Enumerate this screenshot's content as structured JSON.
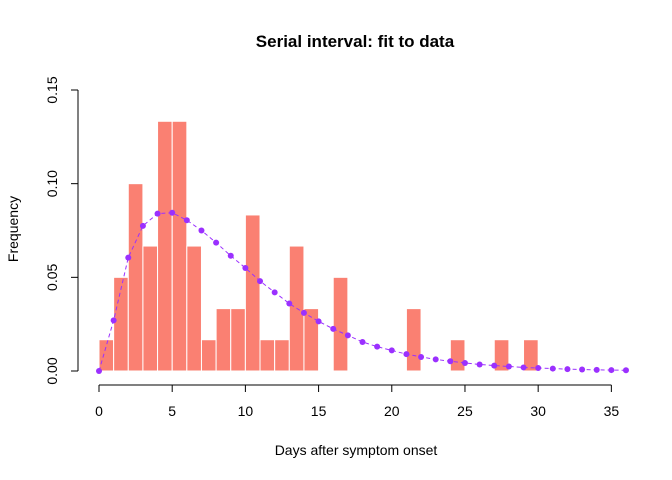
{
  "chart_data": {
    "type": "bar",
    "title": "Serial interval: fit to data",
    "xlabel": "Days after symptom onset",
    "ylabel": "Frequency",
    "xlim": [
      0,
      36
    ],
    "ylim": [
      0,
      0.15
    ],
    "x_ticks": [
      0,
      5,
      10,
      15,
      20,
      25,
      30,
      35
    ],
    "y_ticks": [
      0.0,
      0.05,
      0.1,
      0.15
    ],
    "y_tick_labels": [
      "0.00",
      "0.05",
      "0.10",
      "0.15"
    ],
    "bar_color": "#fa8072",
    "series": [
      {
        "type": "histogram",
        "bins": [
          {
            "x0": 0,
            "x1": 1,
            "value": 0.0167
          },
          {
            "x0": 1,
            "x1": 2,
            "value": 0.05
          },
          {
            "x0": 2,
            "x1": 3,
            "value": 0.1
          },
          {
            "x0": 3,
            "x1": 4,
            "value": 0.0667
          },
          {
            "x0": 4,
            "x1": 5,
            "value": 0.1333
          },
          {
            "x0": 5,
            "x1": 6,
            "value": 0.1333
          },
          {
            "x0": 6,
            "x1": 7,
            "value": 0.0667
          },
          {
            "x0": 7,
            "x1": 8,
            "value": 0.0167
          },
          {
            "x0": 8,
            "x1": 9,
            "value": 0.0333
          },
          {
            "x0": 9,
            "x1": 10,
            "value": 0.0333
          },
          {
            "x0": 10,
            "x1": 11,
            "value": 0.0833
          },
          {
            "x0": 11,
            "x1": 12,
            "value": 0.0167
          },
          {
            "x0": 12,
            "x1": 13,
            "value": 0.0167
          },
          {
            "x0": 13,
            "x1": 14,
            "value": 0.0667
          },
          {
            "x0": 14,
            "x1": 15,
            "value": 0.0333
          },
          {
            "x0": 16,
            "x1": 17,
            "value": 0.05
          },
          {
            "x0": 21,
            "x1": 22,
            "value": 0.0333
          },
          {
            "x0": 24,
            "x1": 25,
            "value": 0.0167
          },
          {
            "x0": 27,
            "x1": 28,
            "value": 0.0167
          },
          {
            "x0": 29,
            "x1": 30,
            "value": 0.0167
          }
        ]
      },
      {
        "type": "line",
        "color": "#9b30ff",
        "line_style": "dashed",
        "x": [
          0,
          1,
          2,
          3,
          4,
          5,
          6,
          7,
          8,
          9,
          10,
          11,
          12,
          13,
          14,
          15,
          16,
          17,
          18,
          19,
          20,
          21,
          22,
          23,
          24,
          25,
          26,
          27,
          28,
          29,
          30,
          31,
          32,
          33,
          34,
          35,
          36
        ],
        "y": [
          0.0,
          0.027,
          0.0605,
          0.0775,
          0.084,
          0.0845,
          0.0805,
          0.075,
          0.0685,
          0.0615,
          0.055,
          0.048,
          0.042,
          0.036,
          0.031,
          0.0265,
          0.0225,
          0.019,
          0.0155,
          0.013,
          0.011,
          0.009,
          0.0075,
          0.0062,
          0.0052,
          0.0043,
          0.0035,
          0.0029,
          0.0024,
          0.0019,
          0.0016,
          0.0013,
          0.001,
          0.0008,
          0.0006,
          0.0005,
          0.0004
        ]
      }
    ],
    "grid": false
  }
}
